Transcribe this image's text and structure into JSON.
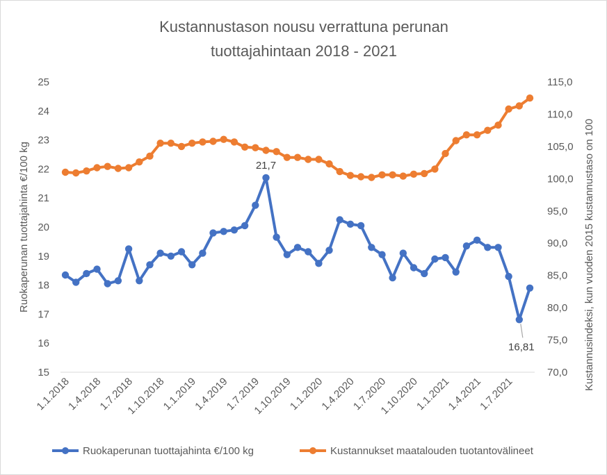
{
  "chart_data": {
    "type": "line",
    "title": [
      "Kustannustason nousu verrattuna perunan",
      "tuottajahintaan 2018 - 2021"
    ],
    "ylabel": "Ruokaperunan tuottajahinta €/100 kg",
    "y2label": "Kustannusindeksi, kun vuoden 2015 kustannustaso on 100",
    "ylim": [
      15,
      25
    ],
    "y2lim": [
      70,
      115
    ],
    "yticks": [
      "15",
      "16",
      "17",
      "18",
      "19",
      "20",
      "21",
      "22",
      "23",
      "24",
      "25"
    ],
    "y2ticks": [
      "70,0",
      "75,0",
      "80,0",
      "85,0",
      "90,0",
      "95,0",
      "100,0",
      "105,0",
      "110,0",
      "115,0"
    ],
    "x_labels": [
      {
        "index": 0,
        "label": "1.1.2018"
      },
      {
        "index": 3,
        "label": "1.4.2018"
      },
      {
        "index": 6,
        "label": "1.7.2018"
      },
      {
        "index": 9,
        "label": "1.10.2018"
      },
      {
        "index": 12,
        "label": "1.1.2019"
      },
      {
        "index": 15,
        "label": "1.4.2019"
      },
      {
        "index": 18,
        "label": "1.7.2019"
      },
      {
        "index": 21,
        "label": "1.10.2019"
      },
      {
        "index": 24,
        "label": "1.1.2020"
      },
      {
        "index": 27,
        "label": "1.4.2020"
      },
      {
        "index": 30,
        "label": "1.7.2020"
      },
      {
        "index": 33,
        "label": "1.10.2020"
      },
      {
        "index": 36,
        "label": "1.1.2021"
      },
      {
        "index": 39,
        "label": "1.4.2021"
      },
      {
        "index": 42,
        "label": "1.7.2021"
      }
    ],
    "series": [
      {
        "name": "Ruokaperunan tuottajahinta €/100 kg",
        "axis": "left",
        "color": "#4472C4",
        "values": [
          18.35,
          18.1,
          18.4,
          18.55,
          18.05,
          18.15,
          19.25,
          18.15,
          18.7,
          19.1,
          19.0,
          19.15,
          18.7,
          19.1,
          19.8,
          19.85,
          19.9,
          20.05,
          20.75,
          21.7,
          19.65,
          19.05,
          19.3,
          19.15,
          18.75,
          19.2,
          20.25,
          20.1,
          20.05,
          19.3,
          19.05,
          18.25,
          19.1,
          18.6,
          18.4,
          18.9,
          18.95,
          18.45,
          19.35,
          19.55,
          19.3,
          19.3,
          18.3,
          16.81,
          17.9
        ],
        "annotations": [
          {
            "index": 19,
            "text": "21,7"
          },
          {
            "index": 43,
            "text": "16,81"
          }
        ]
      },
      {
        "name": "Kustannukset maatalouden tuotantovälineet",
        "axis": "right",
        "color": "#ED7D31",
        "values": [
          101.0,
          100.9,
          101.2,
          101.7,
          101.9,
          101.6,
          101.7,
          102.6,
          103.5,
          105.5,
          105.5,
          105.0,
          105.5,
          105.7,
          105.8,
          106.1,
          105.7,
          104.9,
          104.8,
          104.4,
          104.2,
          103.3,
          103.3,
          103.0,
          103.0,
          102.3,
          101.1,
          100.5,
          100.3,
          100.2,
          100.6,
          100.6,
          100.4,
          100.7,
          100.8,
          101.5,
          103.9,
          105.9,
          106.8,
          106.8,
          107.5,
          108.3,
          110.8,
          111.3,
          112.5
        ]
      }
    ],
    "grid": false,
    "legend_position": "bottom"
  }
}
